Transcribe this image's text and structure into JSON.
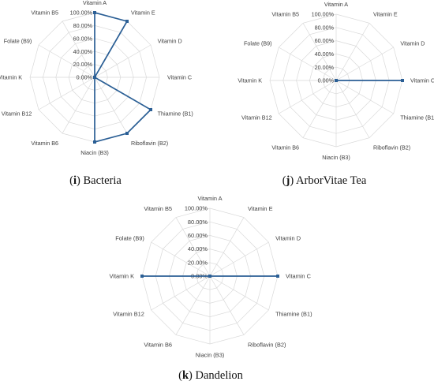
{
  "figure": {
    "panels": [
      {
        "caption_open": "(",
        "caption_tag": "i",
        "caption_text": ") Bacteria"
      },
      {
        "caption_open": "(",
        "caption_tag": "j",
        "caption_text": ") ArborVitae Tea"
      },
      {
        "caption_open": "(",
        "caption_tag": "k",
        "caption_text": ") Dandelion"
      }
    ]
  },
  "chart_data": [
    {
      "type": "radar",
      "categories": [
        "Vitamin A",
        "Vitamin E",
        "Vitamin D",
        "Vitamin C",
        "Thiamine (B1)",
        "Riboflavin  (B2)",
        "Niacin (B3)",
        "Vitamin B6",
        "Vitamin B12",
        "Vitamin K",
        "Folate (B9)",
        "Vitamin B5"
      ],
      "radial_ticks": [
        "0.00%",
        "20.00%",
        "40.00%",
        "60.00%",
        "80.00%",
        "100.00%"
      ],
      "rlim": [
        0,
        100
      ],
      "grid": true,
      "series_color": "#2b5f95",
      "series": [
        {
          "values": [
            100,
            100,
            0,
            0,
            100,
            100,
            100,
            0,
            0,
            0,
            0,
            0
          ]
        }
      ]
    },
    {
      "type": "radar",
      "categories": [
        "Vitamin A",
        "Vitamin E",
        "Vitamin D",
        "Vitamin C",
        "Thiamine (B1)",
        "Riboflavin  (B2)",
        "Niacin (B3)",
        "Vitamin B6",
        "Vitamin B12",
        "Vitamin K",
        "Folate (B9)",
        "Vitamin B5"
      ],
      "radial_ticks": [
        "0.00%",
        "20.00%",
        "40.00%",
        "60.00%",
        "80.00%",
        "100.00%"
      ],
      "rlim": [
        0,
        100
      ],
      "grid": true,
      "series_color": "#2b5f95",
      "series": [
        {
          "values": [
            0,
            0,
            0,
            100,
            0,
            0,
            0,
            0,
            0,
            0,
            0,
            0
          ]
        }
      ]
    },
    {
      "type": "radar",
      "categories": [
        "Vitamin A",
        "Vitamin E",
        "Vitamin D",
        "Vitamin C",
        "Thiamine (B1)",
        "Riboflavin  (B2)",
        "Niacin (B3)",
        "Vitamin B6",
        "Vitamin B12",
        "Vitamin K",
        "Folate (B9)",
        "Vitamin B5"
      ],
      "radial_ticks": [
        "0.00%",
        "20.00%",
        "40.00%",
        "60.00%",
        "80.00%",
        "100.00%"
      ],
      "rlim": [
        0,
        100
      ],
      "grid": true,
      "series_color": "#2b5f95",
      "series": [
        {
          "values": [
            0,
            0,
            0,
            100,
            0,
            0,
            0,
            0,
            0,
            100,
            0,
            0
          ]
        }
      ]
    }
  ]
}
